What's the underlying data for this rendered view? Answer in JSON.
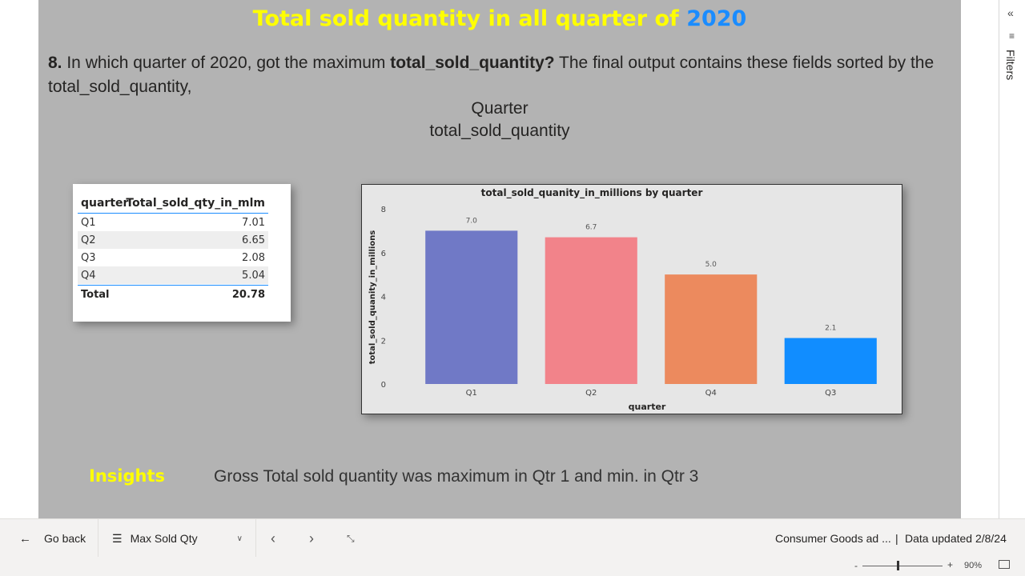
{
  "page": {
    "title_main": "Total sold quantity in all quarter of ",
    "title_year": "2020",
    "question_num": "8.",
    "question_text_1": " In which quarter of 2020, got the maximum ",
    "question_bold": "total_sold_quantity?",
    "question_text_2": " The final output contains these fields sorted by the total_sold_quantity,",
    "field_1": "Quarter",
    "field_2": "total_sold_quantity",
    "insights_label": "Insights",
    "insights_text": "Gross Total sold quantity was maximum in Qtr 1 and min. in Qtr 3"
  },
  "table": {
    "headers": [
      "quarter",
      "Total_sold_qty_in_mlm"
    ],
    "rows": [
      {
        "quarter": "Q1",
        "value": "7.01"
      },
      {
        "quarter": "Q2",
        "value": "6.65"
      },
      {
        "quarter": "Q3",
        "value": "2.08"
      },
      {
        "quarter": "Q4",
        "value": "5.04"
      }
    ],
    "total_label": "Total",
    "total_value": "20.78"
  },
  "chart_data": {
    "type": "bar",
    "title": "total_sold_quanity_in_millions by quarter",
    "xlabel": "quarter",
    "ylabel": "total_sold_quanity_in_millions",
    "categories": [
      "Q1",
      "Q2",
      "Q4",
      "Q3"
    ],
    "values": [
      7.0,
      6.7,
      5.0,
      2.1
    ],
    "data_labels": [
      "7.0",
      "6.7",
      "5.0",
      "2.1"
    ],
    "colors": [
      "#7079c6",
      "#f2838a",
      "#ec8a5e",
      "#118dff"
    ],
    "ylim": [
      0,
      8
    ],
    "yticks": [
      0,
      2,
      4,
      6,
      8
    ],
    "grid": false,
    "legend": "none"
  },
  "filters": {
    "label": "Filters",
    "collapse_icon": "double-chevron-left-icon",
    "filter_icon": "filter-icon"
  },
  "bottom_bar": {
    "go_back": "Go back",
    "page_name": "Max Sold Qty",
    "report_name": "Consumer Goods ad ...",
    "data_updated": "Data updated 2/8/24"
  },
  "status_bar": {
    "zoom_minus": "-",
    "zoom_plus": "+",
    "zoom_level": "90%"
  }
}
